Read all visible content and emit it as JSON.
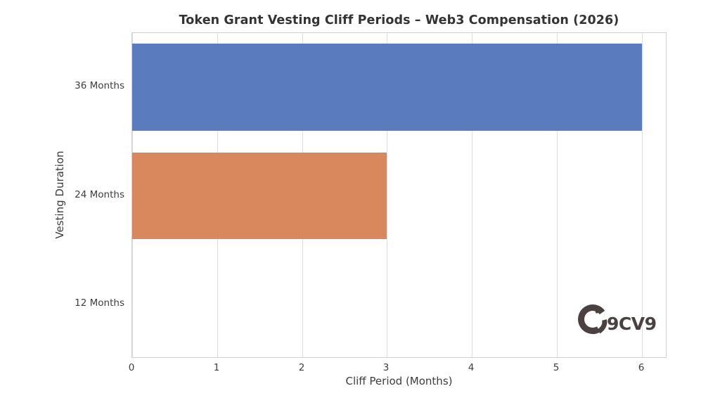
{
  "chart_data": {
    "type": "bar",
    "orientation": "horizontal",
    "title": "Token Grant Vesting Cliff Periods – Web3 Compensation (2026)",
    "xlabel": "Cliff Period (Months)",
    "ylabel": "Vesting Duration",
    "categories": [
      "36 Months",
      "24 Months",
      "12 Months"
    ],
    "values": [
      6,
      3,
      0
    ],
    "bars": [
      {
        "category": "36 Months",
        "value": 6,
        "color": "#5a7cbe"
      },
      {
        "category": "24 Months",
        "value": 3,
        "color": "#d9885e"
      },
      {
        "category": "12 Months",
        "value": 0,
        "color": null
      }
    ],
    "xticks": [
      0,
      1,
      2,
      3,
      4,
      5,
      6
    ],
    "xlim": [
      0,
      6.3
    ],
    "grid": true,
    "grid_axis": "x",
    "legend_position": "none"
  },
  "colors": {
    "bar_blue": "#5a7cbe",
    "bar_orange": "#d9885e",
    "gridline": "#dedede",
    "plot_frame": "#cfcfcf",
    "title_text": "#333333",
    "tick_text": "#3d3d3d",
    "logo": "#4a4140",
    "background": "#ffffff"
  },
  "watermark": {
    "text": "9CV9",
    "mark_letter": "v"
  }
}
